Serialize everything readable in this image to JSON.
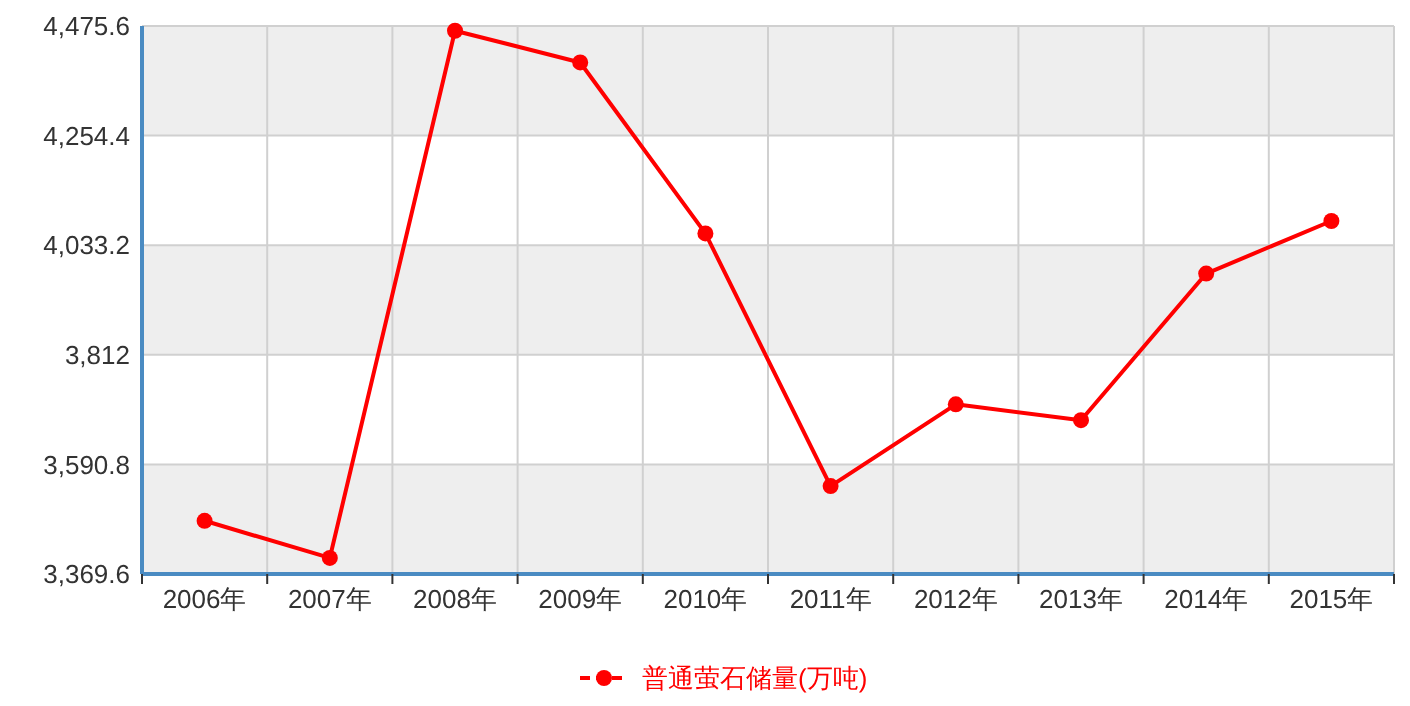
{
  "chart_data": {
    "type": "line",
    "categories": [
      "2006年",
      "2007年",
      "2008年",
      "2009年",
      "2010年",
      "2011年",
      "2012年",
      "2013年",
      "2014年",
      "2015年"
    ],
    "series": [
      {
        "name": "普通萤石储量(万吨)",
        "color": "#ff0000",
        "values": [
          3477,
          3402,
          4466,
          4402,
          4057,
          3547,
          3712,
          3680,
          3976,
          4082
        ]
      }
    ],
    "ylim": [
      3369.6,
      4475.6
    ],
    "yticks": [
      {
        "value": 3369.6,
        "label": "3,369.6"
      },
      {
        "value": 3590.8,
        "label": "3,590.8"
      },
      {
        "value": 3812,
        "label": "3,812"
      },
      {
        "value": 4033.2,
        "label": "4,033.2"
      },
      {
        "value": 4254.4,
        "label": "4,254.4"
      },
      {
        "value": 4475.6,
        "label": "4,475.6"
      }
    ],
    "grid": true,
    "legend": "bottom",
    "marker": "circle",
    "line_style": "solid"
  }
}
